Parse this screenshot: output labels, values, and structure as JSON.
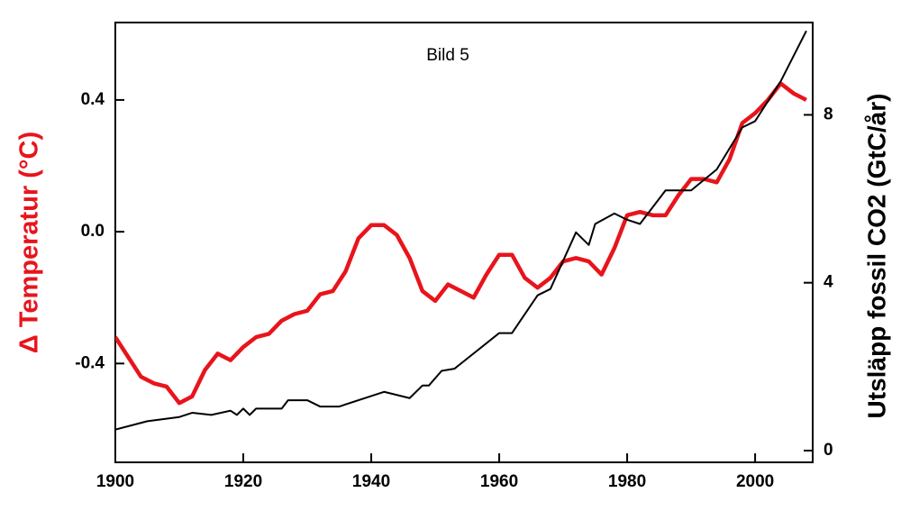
{
  "chart_data": {
    "type": "line",
    "annotation": "Bild 5",
    "ylabel": "Δ Temperatur  (°C)",
    "y2label": "Utsläpp fossil CO2  (GtC/år)",
    "xlim": [
      1900,
      2009
    ],
    "xticks": [
      1900,
      1920,
      1940,
      1960,
      1980,
      2000
    ],
    "ylim": [
      -0.7,
      0.635
    ],
    "yticks": [
      -0.4,
      {
        "value": 0,
        "label": "0.0"
      },
      0.4
    ],
    "y2lim": [
      -0.28,
      10.2
    ],
    "y2ticks": [
      0,
      4,
      8
    ],
    "series": [
      {
        "name": "Δ Temperatur",
        "color": "#e8141c",
        "x": [
          1900,
          1902,
          1904,
          1906,
          1908,
          1910,
          1912,
          1914,
          1916,
          1918,
          1920,
          1922,
          1924,
          1926,
          1928,
          1930,
          1932,
          1934,
          1936,
          1938,
          1940,
          1942,
          1944,
          1946,
          1948,
          1950,
          1952,
          1954,
          1956,
          1958,
          1960,
          1962,
          1964,
          1966,
          1968,
          1970,
          1972,
          1974,
          1976,
          1978,
          1980,
          1982,
          1984,
          1986,
          1988,
          1990,
          1992,
          1994,
          1996,
          1998,
          2000,
          2002,
          2004,
          2006,
          2008
        ],
        "values": [
          -0.32,
          -0.38,
          -0.44,
          -0.46,
          -0.47,
          -0.52,
          -0.5,
          -0.42,
          -0.37,
          -0.39,
          -0.35,
          -0.32,
          -0.31,
          -0.27,
          -0.25,
          -0.24,
          -0.19,
          -0.18,
          -0.12,
          -0.02,
          0.02,
          0.02,
          -0.01,
          -0.08,
          -0.18,
          -0.21,
          -0.16,
          -0.18,
          -0.2,
          -0.13,
          -0.07,
          -0.07,
          -0.14,
          -0.17,
          -0.14,
          -0.09,
          -0.08,
          -0.09,
          -0.13,
          -0.05,
          0.05,
          0.06,
          0.05,
          0.05,
          0.11,
          0.16,
          0.16,
          0.15,
          0.22,
          0.33,
          0.36,
          0.4,
          0.45,
          0.42,
          0.4
        ]
      },
      {
        "name": "Utsläpp fossil CO2",
        "color": "#000000",
        "axis": "y2",
        "x": [
          1900,
          1905,
          1910,
          1912,
          1915,
          1918,
          1919,
          1920,
          1921,
          1922,
          1926,
          1927,
          1930,
          1932,
          1935,
          1940,
          1942,
          1946,
          1948,
          1949,
          1951,
          1953,
          1960,
          1962,
          1966,
          1968,
          1972,
          1973,
          1974,
          1975,
          1978,
          1980,
          1982,
          1986,
          1990,
          1994,
          1998,
          2000,
          2004,
          2008
        ],
        "values": [
          0.5,
          0.7,
          0.8,
          0.9,
          0.85,
          0.95,
          0.85,
          1.0,
          0.85,
          1.0,
          1.0,
          1.2,
          1.2,
          1.05,
          1.05,
          1.3,
          1.4,
          1.25,
          1.55,
          1.55,
          1.9,
          1.95,
          2.8,
          2.8,
          3.7,
          3.85,
          5.2,
          5.05,
          4.9,
          5.4,
          5.65,
          5.5,
          5.4,
          6.2,
          6.2,
          6.7,
          7.7,
          7.85,
          8.8,
          10.0
        ]
      }
    ]
  }
}
